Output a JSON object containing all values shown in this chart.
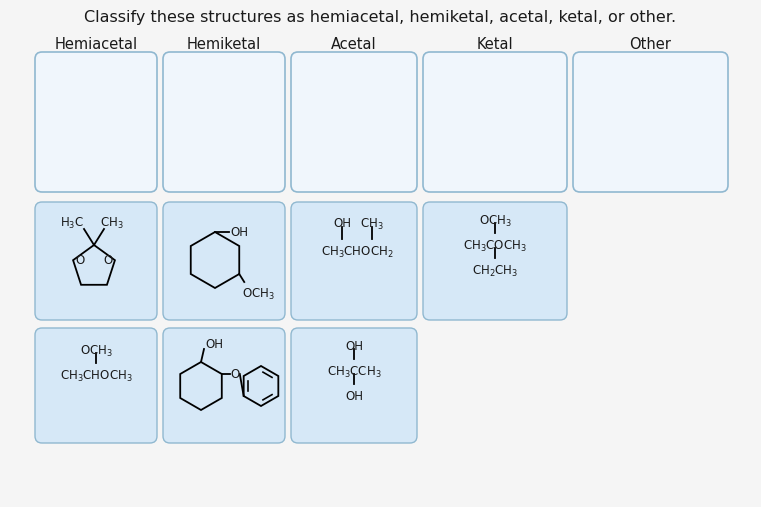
{
  "title": "Classify these structures as hemiacetal, hemiketal, acetal, ketal, or other.",
  "title_fontsize": 11.5,
  "col_headers": [
    "Hemiacetal",
    "Hemiketal",
    "Acetal",
    "Ketal",
    "Other"
  ],
  "col_header_fontsize": 10.5,
  "bg_color": "#f5f5f5",
  "card_bg": "#d6e8f7",
  "card_border": "#90b8d0",
  "empty_box_bg": "#f0f6fc",
  "empty_box_border": "#90b8d0",
  "text_color": "#1a1a1a",
  "line_color": "#000000",
  "mol_fontsize": 8.5,
  "sub_fontsize": 7.0
}
